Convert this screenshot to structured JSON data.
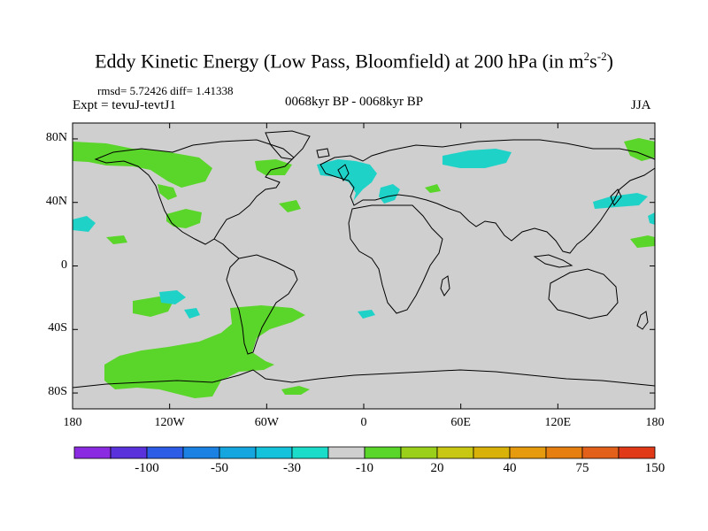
{
  "title": {
    "main": "Eddy Kinetic Energy (Low Pass, Bloomfield) at 200 hPa (in m",
    "sup1": "2",
    "mid": "s",
    "sup2": "-2",
    "end": ")"
  },
  "stats": "rmsd= 5.72426 diff= 1.41338",
  "expt": "Expt = tevuJ-tevtJ1",
  "period": "0068kyr BP - 0068kyr BP",
  "season": "JJA",
  "lat_ticks": [
    {
      "label": "80N",
      "lat": 80
    },
    {
      "label": "40N",
      "lat": 40
    },
    {
      "label": "0",
      "lat": 0
    },
    {
      "label": "40S",
      "lat": -40
    },
    {
      "label": "80S",
      "lat": -80
    }
  ],
  "lon_ticks": [
    {
      "label": "180",
      "lon": -180
    },
    {
      "label": "120W",
      "lon": -120
    },
    {
      "label": "60W",
      "lon": -60
    },
    {
      "label": "0",
      "lon": 0
    },
    {
      "label": "60E",
      "lon": 60
    },
    {
      "label": "120E",
      "lon": 120
    },
    {
      "label": "180",
      "lon": 180
    }
  ],
  "colorbar": {
    "colors": [
      "#8a2be2",
      "#5a32dc",
      "#2d5de6",
      "#1b82e4",
      "#15a6e0",
      "#14c2dc",
      "#1adcc9",
      "#cfcfcf",
      "#5ad52a",
      "#9ad01a",
      "#c8c814",
      "#d8b208",
      "#e69a0e",
      "#e67e10",
      "#e2601a",
      "#e03a18"
    ],
    "labels": [
      {
        "text": "-100",
        "index": 2
      },
      {
        "text": "-50",
        "index": 4
      },
      {
        "text": "-30",
        "index": 6
      },
      {
        "text": "-10",
        "index": 8
      },
      {
        "text": "20",
        "index": 10
      },
      {
        "text": "40",
        "index": 12
      },
      {
        "text": "75",
        "index": 14
      },
      {
        "text": "150",
        "index": 16
      }
    ]
  },
  "colors": {
    "background_field": "#cfcfcf",
    "positive": "#5ad52a",
    "negative": "#1ed2c8",
    "coast": "#000000"
  }
}
